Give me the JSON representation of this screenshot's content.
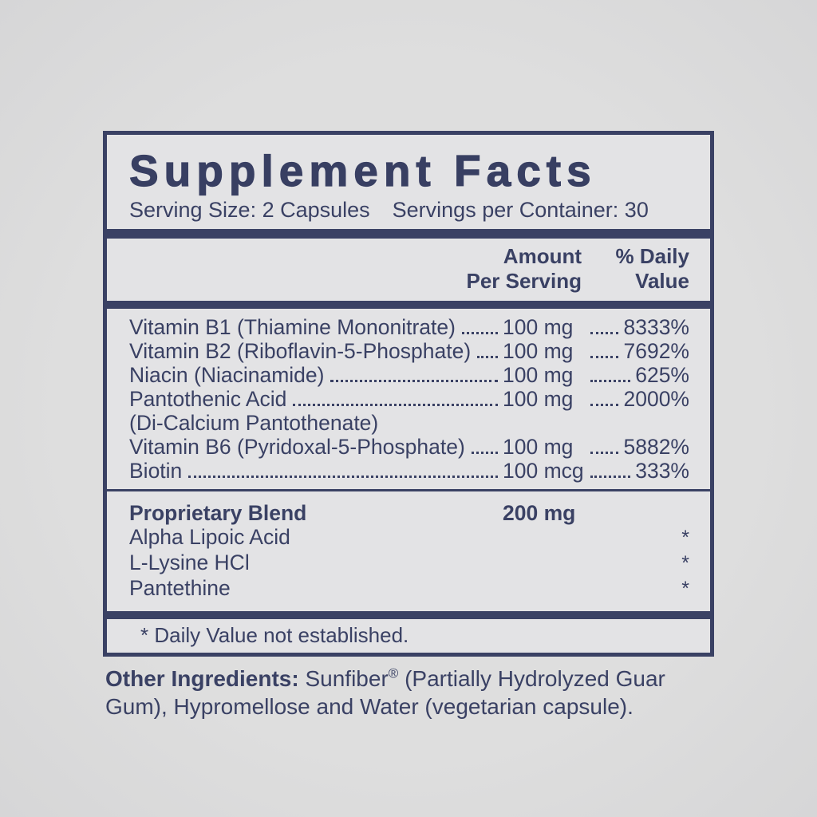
{
  "colors": {
    "navy": "#3a4164",
    "panel_background": "#e3e3e5",
    "page_background": "#dbdbdc"
  },
  "title": "Supplement Facts",
  "serving": {
    "size": "Serving Size: 2 Capsules",
    "per_container": "Servings per Container: 30"
  },
  "columns": {
    "amount_line1": "Amount",
    "amount_line2": "Per Serving",
    "dv_line1": "% Daily",
    "dv_line2": "Value"
  },
  "nutrients": [
    {
      "name": "Vitamin B1 (Thiamine Mononitrate)",
      "amount": "100 mg",
      "dv": "8333%"
    },
    {
      "name": "Vitamin B2 (Riboflavin-5-Phosphate)",
      "amount": "100 mg",
      "dv": "7692%"
    },
    {
      "name": "Niacin (Niacinamide)",
      "amount": "100 mg",
      "dv": "625%"
    },
    {
      "name": "Pantothenic Acid",
      "amount": "100 mg",
      "dv": "2000%"
    },
    {
      "name": "(Di-Calcium Pantothenate)",
      "amount": "",
      "dv": ""
    },
    {
      "name": "Vitamin B6 (Pyridoxal-5-Phosphate)",
      "amount": "100 mg",
      "dv": "5882%"
    },
    {
      "name": "Biotin",
      "amount": "100 mcg",
      "dv": "333%"
    }
  ],
  "blend": {
    "name": "Proprietary Blend",
    "amount": "200 mg",
    "items": [
      {
        "name": "Alpha Lipoic Acid",
        "dv": "*"
      },
      {
        "name": "L-Lysine HCl",
        "dv": "*"
      },
      {
        "name": "Pantethine",
        "dv": "*"
      }
    ]
  },
  "footnote": "* Daily Value not established.",
  "other_ingredients": {
    "label": "Other Ingredients:",
    "part1": " Sunfiber",
    "reg_mark": "®",
    "part2": " (Partially Hydrolyzed Guar Gum), Hypromellose and Water (vegetarian capsule)."
  }
}
